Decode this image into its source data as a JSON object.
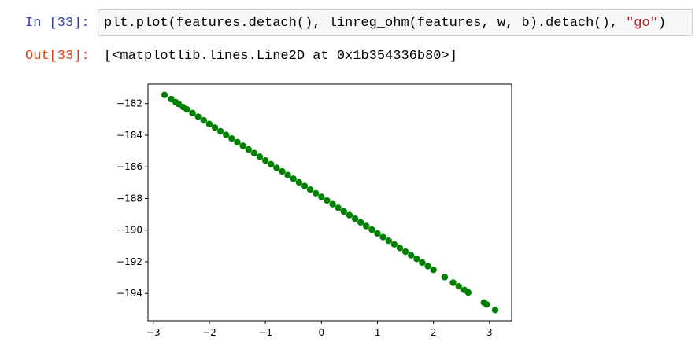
{
  "cell": {
    "in_prompt": "In [33]:",
    "code": [
      "plt.plot(features.detach(), linreg_ohm(features, w, b).detach(), ",
      "\"go\"",
      ")"
    ],
    "out_prompt": "Out[33]:",
    "output": "[<matplotlib.lines.Line2D at 0x1b354336b80>]"
  },
  "chart_data": {
    "type": "scatter",
    "color": "#008000",
    "x": [
      -2.8,
      -2.68,
      -2.6,
      -2.55,
      -2.47,
      -2.4,
      -2.3,
      -2.2,
      -2.1,
      -2.0,
      -1.9,
      -1.8,
      -1.7,
      -1.6,
      -1.5,
      -1.4,
      -1.3,
      -1.2,
      -1.1,
      -1.0,
      -0.9,
      -0.8,
      -0.7,
      -0.6,
      -0.5,
      -0.4,
      -0.3,
      -0.2,
      -0.1,
      0,
      0.1,
      0.2,
      0.3,
      0.4,
      0.5,
      0.6,
      0.7,
      0.8,
      0.9,
      1.0,
      1.1,
      1.2,
      1.3,
      1.4,
      1.5,
      1.6,
      1.7,
      1.8,
      1.9,
      2.0,
      2.2,
      2.35,
      2.45,
      2.55,
      2.62,
      2.9,
      2.95,
      3.1
    ],
    "values": [
      -181.45,
      -181.72,
      -181.91,
      -182.02,
      -182.21,
      -182.37,
      -182.6,
      -182.83,
      -183.06,
      -183.29,
      -183.52,
      -183.75,
      -183.98,
      -184.21,
      -184.44,
      -184.67,
      -184.9,
      -185.13,
      -185.36,
      -185.6,
      -185.83,
      -186.06,
      -186.29,
      -186.52,
      -186.75,
      -186.98,
      -187.21,
      -187.44,
      -187.67,
      -187.9,
      -188.13,
      -188.36,
      -188.59,
      -188.82,
      -189.05,
      -189.28,
      -189.51,
      -189.74,
      -189.97,
      -190.21,
      -190.44,
      -190.67,
      -190.9,
      -191.13,
      -191.36,
      -191.59,
      -191.82,
      -192.05,
      -192.28,
      -192.51,
      -192.97,
      -193.32,
      -193.55,
      -193.78,
      -193.94,
      -194.58,
      -194.7,
      -195.05
    ],
    "xlim": [
      -3.095,
      3.395
    ],
    "ylim": [
      -195.73,
      -180.77
    ],
    "xticks": [
      {
        "value": -3,
        "label": "−3"
      },
      {
        "value": -2,
        "label": "−2"
      },
      {
        "value": -1,
        "label": "−1"
      },
      0,
      1,
      2,
      3
    ],
    "yticks": [
      {
        "value": -194,
        "label": "−194"
      },
      {
        "value": -192,
        "label": "−192"
      },
      {
        "value": -190,
        "label": "−190"
      },
      {
        "value": -188,
        "label": "−188"
      },
      {
        "value": -186,
        "label": "−186"
      },
      {
        "value": -184,
        "label": "−184"
      },
      {
        "value": -182,
        "label": "−182"
      }
    ]
  }
}
